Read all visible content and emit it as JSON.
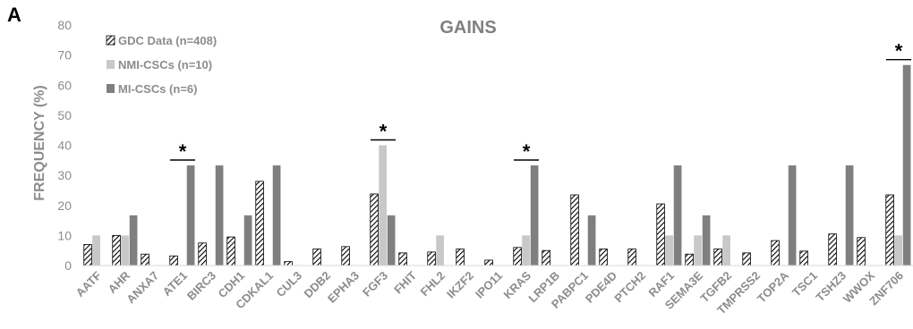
{
  "panel_letter": "A",
  "chart_data": {
    "type": "bar",
    "title": "GAINS",
    "ylabel": "FREQUENCY (%)",
    "xlabel": "",
    "ylim": [
      0,
      80
    ],
    "yticks": [
      0,
      10,
      20,
      30,
      40,
      50,
      60,
      70,
      80
    ],
    "grid": false,
    "legend_position": "top-left",
    "categories": [
      "AATF",
      "AHR",
      "ANXA7",
      "ATE1",
      "BIRC3",
      "CDH1",
      "CDKAL1",
      "CUL3",
      "DDB2",
      "EPHA3",
      "FGF3",
      "FHIT",
      "FHL2",
      "IKZF2",
      "IPO11",
      "KRAS",
      "LRP1B",
      "PABPC1",
      "PDE4D",
      "PTCH2",
      "RAF1",
      "SEMA3E",
      "TGFB2",
      "TMPRSS2",
      "TOP2A",
      "TSC1",
      "TSHZ3",
      "WWOX",
      "ZNF706"
    ],
    "series": [
      {
        "name": "GDC Data (n=408)",
        "color": "#000000",
        "pattern": "hatched",
        "values": [
          7,
          10,
          3.8,
          3.2,
          7.5,
          9.5,
          28,
          1.3,
          5.5,
          6.3,
          23.8,
          4.2,
          4.5,
          5.5,
          1.8,
          6,
          5,
          23.5,
          5.5,
          5.5,
          20.5,
          3.8,
          5.5,
          4.2,
          8.3,
          4.8,
          10.5,
          9.3,
          23.5
        ]
      },
      {
        "name": "NMI-CSCs (n=10)",
        "color": "#c8c8c8",
        "pattern": "solid",
        "values": [
          10,
          10,
          0,
          0,
          0,
          0,
          0,
          0,
          0,
          0,
          40,
          0,
          10,
          0,
          0,
          10,
          0,
          0,
          0,
          0,
          10,
          10,
          10,
          0,
          0,
          0,
          0,
          0,
          10
        ]
      },
      {
        "name": "MI-CSCs (n=6)",
        "color": "#7f7f7f",
        "pattern": "solid",
        "values": [
          0,
          16.7,
          0,
          33.3,
          33.3,
          16.7,
          33.3,
          0,
          0,
          0,
          16.7,
          0,
          0,
          0,
          0,
          33.3,
          0,
          16.7,
          0,
          0,
          33.3,
          16.7,
          0,
          0,
          33.3,
          0,
          33.3,
          0,
          66.7
        ]
      }
    ],
    "significance": [
      {
        "category": "ATE1",
        "label": "*"
      },
      {
        "category": "FGF3",
        "label": "*"
      },
      {
        "category": "KRAS",
        "label": "*"
      },
      {
        "category": "ZNF706",
        "label": "*"
      }
    ]
  }
}
